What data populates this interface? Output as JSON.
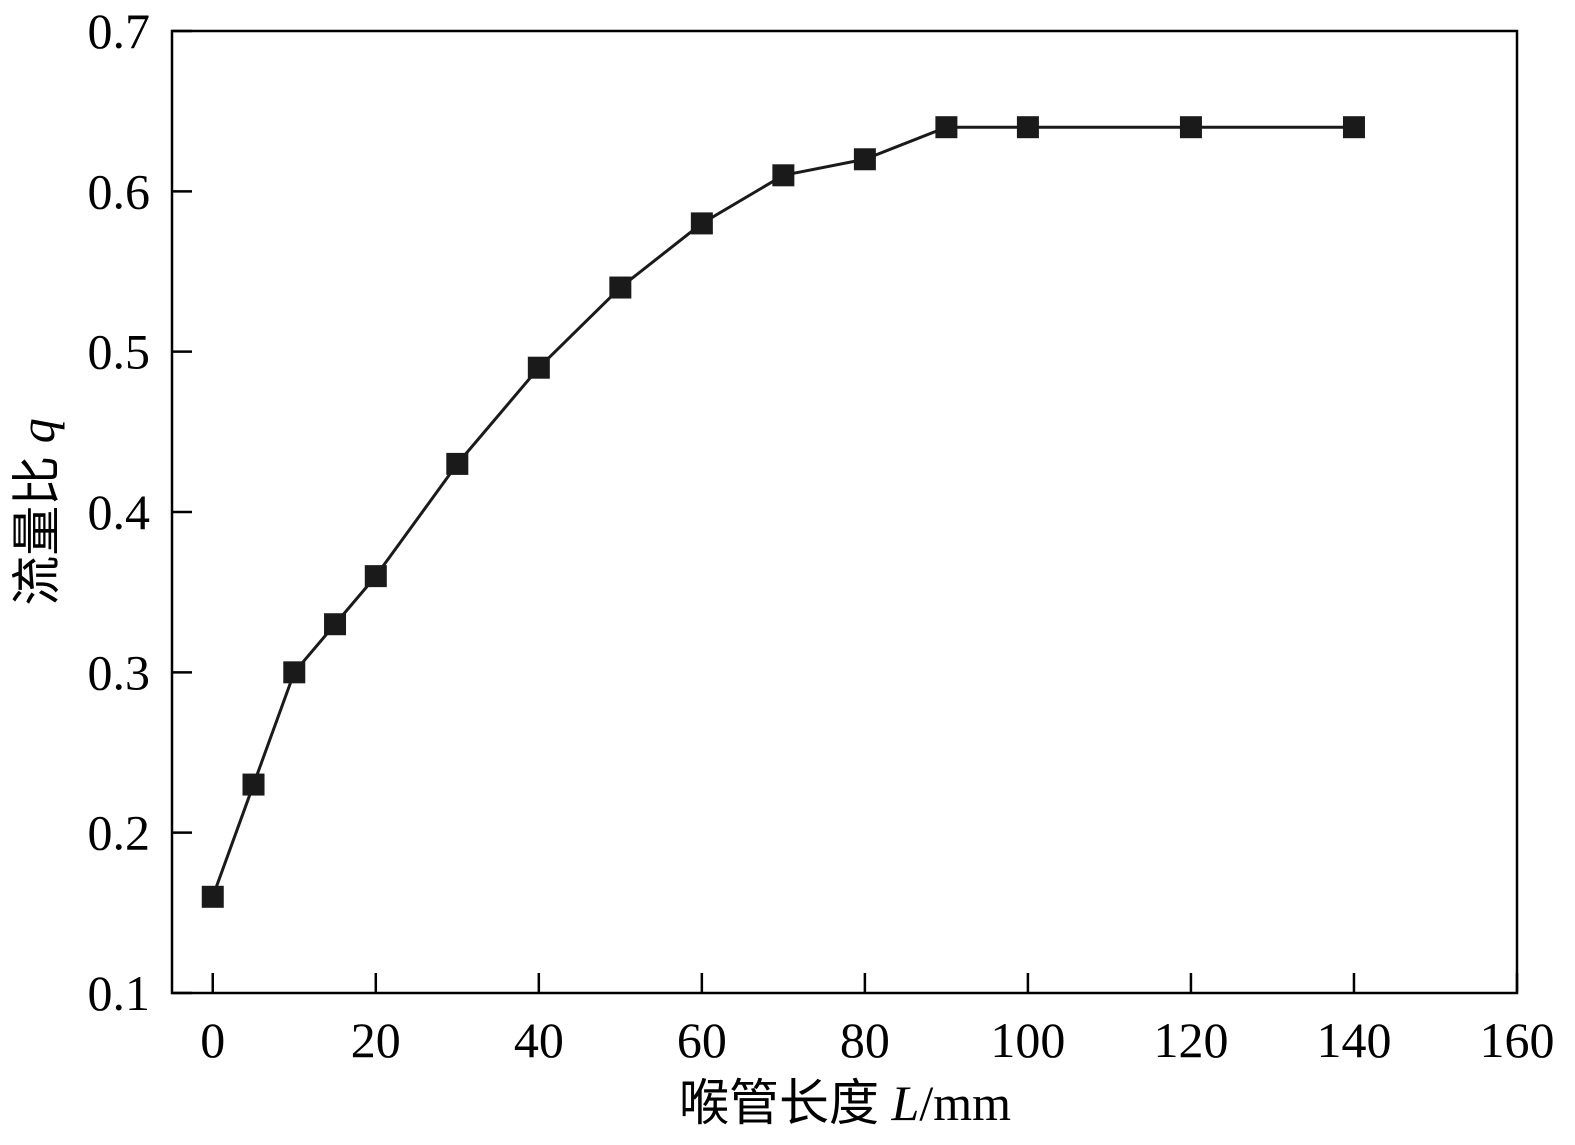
{
  "chart_data": {
    "type": "line",
    "xlabel": "喉管长度 L/mm",
    "ylabel": "流量比 q",
    "xlim": [
      -5,
      160
    ],
    "ylim": [
      0.1,
      0.7
    ],
    "xticks": [
      0,
      20,
      40,
      60,
      80,
      100,
      120,
      140,
      160
    ],
    "yticks": [
      0.1,
      0.2,
      0.3,
      0.4,
      0.5,
      0.6,
      0.7
    ],
    "grid": false,
    "legend": "none",
    "marker": "square",
    "color": "#1a1a1a",
    "series": [
      {
        "x": [
          0,
          5,
          10,
          15,
          20,
          30,
          40,
          50,
          60,
          70,
          80,
          90,
          100,
          120,
          140
        ],
        "y": [
          0.16,
          0.23,
          0.3,
          0.33,
          0.36,
          0.43,
          0.49,
          0.54,
          0.58,
          0.61,
          0.62,
          0.64,
          0.64,
          0.64,
          0.64
        ]
      }
    ]
  }
}
